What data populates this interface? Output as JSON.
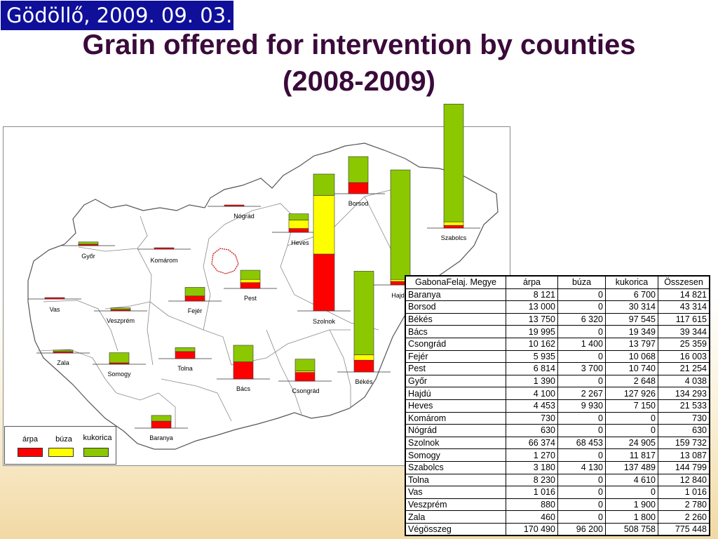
{
  "header": {
    "date_text": "Gödöllő, 2009. 09. 03.",
    "title_line1": "Grain offered for intervention by counties",
    "title_line2": "(2008-2009)"
  },
  "legend": {
    "items": [
      {
        "label": "árpa",
        "color": "#ff0000"
      },
      {
        "label": "búza",
        "color": "#ffff00"
      },
      {
        "label": "kukorica",
        "color": "#8cc800"
      }
    ]
  },
  "table": {
    "headers": [
      "GabonaFelaj. Megye",
      "árpa",
      "búza",
      "kukorica",
      "Összesen"
    ],
    "rows": [
      [
        "Baranya",
        "8 121",
        "0",
        "6 700",
        "14 821"
      ],
      [
        "Borsod",
        "13 000",
        "0",
        "30 314",
        "43 314"
      ],
      [
        "Békés",
        "13 750",
        "6 320",
        "97 545",
        "117 615"
      ],
      [
        "Bács",
        "19 995",
        "0",
        "19 349",
        "39 344"
      ],
      [
        "Csongrád",
        "10 162",
        "1 400",
        "13 797",
        "25 359"
      ],
      [
        "Fejér",
        "5 935",
        "0",
        "10 068",
        "16 003"
      ],
      [
        "Pest",
        "6 814",
        "3 700",
        "10 740",
        "21 254"
      ],
      [
        "Győr",
        "1 390",
        "0",
        "2 648",
        "4 038"
      ],
      [
        "Hajdú",
        "4 100",
        "2 267",
        "127 926",
        "134 293"
      ],
      [
        "Heves",
        "4 453",
        "9 930",
        "7 150",
        "21 533"
      ],
      [
        "Komárom",
        "730",
        "0",
        "0",
        "730"
      ],
      [
        "Nógrád",
        "630",
        "0",
        "0",
        "630"
      ],
      [
        "Szolnok",
        "66 374",
        "68 453",
        "24 905",
        "159 732"
      ],
      [
        "Somogy",
        "1 270",
        "0",
        "11 817",
        "13 087"
      ],
      [
        "Szabolcs",
        "3 180",
        "4 130",
        "137 489",
        "144 799"
      ],
      [
        "Tolna",
        "8 230",
        "0",
        "4 610",
        "12 840"
      ],
      [
        "Vas",
        "1 016",
        "0",
        "0",
        "1 016"
      ],
      [
        "Veszprém",
        "880",
        "0",
        "1 900",
        "2 780"
      ],
      [
        "Zala",
        "460",
        "0",
        "1 800",
        "2 260"
      ],
      [
        "Végösszeg",
        "170 490",
        "96 200",
        "508 758",
        "775 448"
      ]
    ]
  },
  "chart_data": {
    "type": "bar",
    "stacked": true,
    "series_names": [
      "árpa",
      "búza",
      "kukorica"
    ],
    "colors": [
      "#ff0000",
      "#ffff00",
      "#8cc800"
    ],
    "counties": [
      {
        "name": "Győr",
        "label": "Győr",
        "values": [
          1390,
          0,
          2648
        ]
      },
      {
        "name": "Komárom",
        "label": "Komárom",
        "values": [
          730,
          0,
          0
        ]
      },
      {
        "name": "Nógrád",
        "label": "Nógrád",
        "values": [
          630,
          0,
          0
        ]
      },
      {
        "name": "Heves",
        "label": "Heves",
        "values": [
          4453,
          9930,
          7150
        ]
      },
      {
        "name": "Borsod",
        "label": "Borsod",
        "values": [
          13000,
          0,
          30314
        ]
      },
      {
        "name": "Szabolcs",
        "label": "Szabolcs",
        "values": [
          3180,
          4130,
          137489
        ]
      },
      {
        "name": "Szolnok",
        "label": "Szolnok",
        "values": [
          66374,
          68453,
          24905
        ]
      },
      {
        "name": "Hajdú",
        "label": "Hajdú",
        "values": [
          4100,
          2267,
          127926
        ]
      },
      {
        "name": "Pest",
        "label": "Pest",
        "values": [
          6814,
          3700,
          10740
        ]
      },
      {
        "name": "Fejér",
        "label": "Fejér",
        "values": [
          5935,
          0,
          10068
        ]
      },
      {
        "name": "Vas",
        "label": "Vas",
        "values": [
          1016,
          0,
          0
        ]
      },
      {
        "name": "Veszprém",
        "label": "Veszprém",
        "values": [
          880,
          0,
          1900
        ]
      },
      {
        "name": "Zala",
        "label": "Zala",
        "values": [
          460,
          0,
          1800
        ]
      },
      {
        "name": "Somogy",
        "label": "Somogy",
        "values": [
          1270,
          0,
          11817
        ]
      },
      {
        "name": "Tolna",
        "label": "Tolna",
        "values": [
          8230,
          0,
          4610
        ]
      },
      {
        "name": "Bács",
        "label": "Bács",
        "values": [
          19995,
          0,
          19349
        ]
      },
      {
        "name": "Csongrád",
        "label": "Csongrád",
        "values": [
          10162,
          1400,
          13797
        ]
      },
      {
        "name": "Békés",
        "label": "Békés",
        "values": [
          13750,
          6320,
          97545
        ]
      },
      {
        "name": "Baranya",
        "label": "Baranya",
        "values": [
          8121,
          0,
          6700
        ]
      }
    ]
  }
}
